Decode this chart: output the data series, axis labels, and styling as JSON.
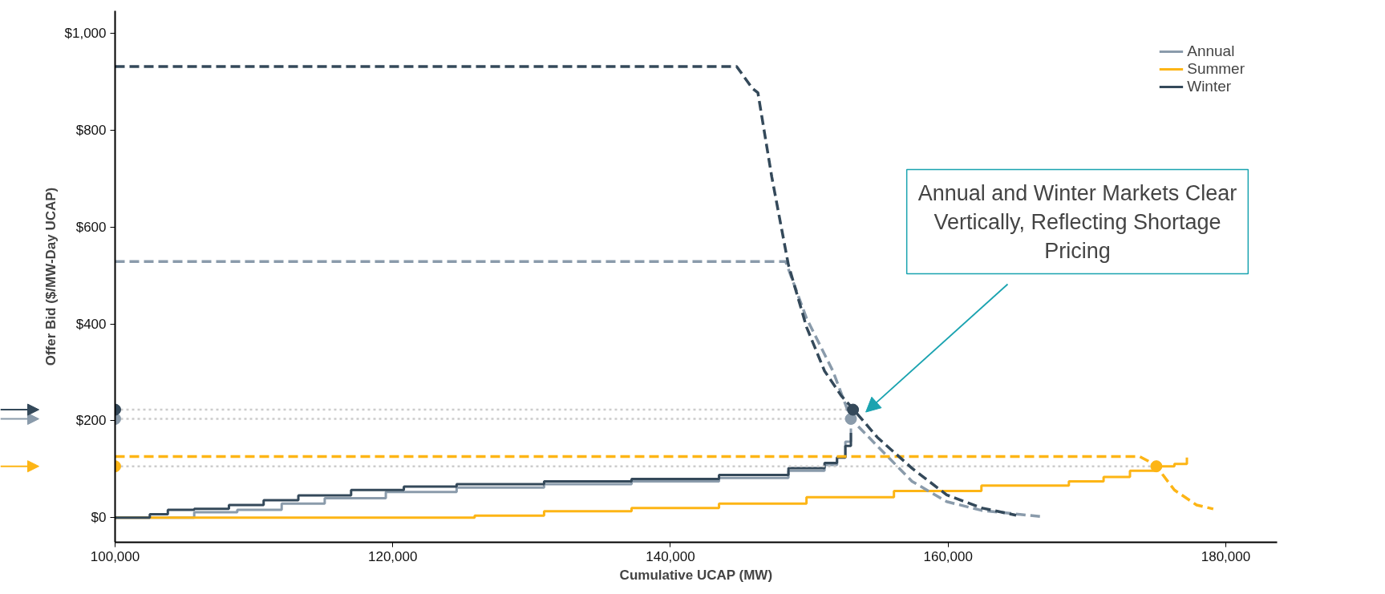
{
  "chart_data": {
    "type": "line",
    "xlabel": "Cumulative UCAP (MW)",
    "ylabel": "Offer Bid ($/MW-Day UCAP)",
    "xlim": [
      100000,
      183700
    ],
    "ylim": [
      -51,
      1047
    ],
    "xticks": [
      {
        "value": 100000,
        "label": "100,000"
      },
      {
        "value": 120000,
        "label": "120,000"
      },
      {
        "value": 140000,
        "label": "140,000"
      },
      {
        "value": 160000,
        "label": "160,000"
      },
      {
        "value": 180000,
        "label": "180,000"
      }
    ],
    "yticks": [
      {
        "value": 0,
        "label": "$0"
      },
      {
        "value": 200,
        "label": "$200"
      },
      {
        "value": 400,
        "label": "$400"
      },
      {
        "value": 600,
        "label": "$600"
      },
      {
        "value": 800,
        "label": "$800"
      },
      {
        "value": 1000,
        "label": "$1,000"
      }
    ],
    "grid": false,
    "legend": "top right",
    "series": [
      {
        "name": "Annual",
        "type": "step",
        "color": "#8a9bab",
        "x": [
          100000,
          103200,
          105700,
          108800,
          112000,
          115100,
          119500,
          124600,
          130900,
          137200,
          143500,
          148500,
          151100,
          152000,
          152600,
          153000
        ],
        "values": [
          0,
          0,
          11,
          16,
          29,
          40,
          53,
          62,
          69,
          75,
          82,
          97,
          109,
          124,
          157,
          184
        ]
      },
      {
        "name": "Summer",
        "type": "step",
        "color": "#fdb515",
        "x": [
          100000,
          123300,
          125900,
          130900,
          137200,
          143500,
          149800,
          156100,
          162400,
          168700,
          171200,
          173100,
          175000,
          176300,
          177200
        ],
        "values": [
          0,
          0,
          4,
          13,
          20,
          29,
          42,
          55,
          66,
          75,
          84,
          97,
          106,
          111,
          124
        ]
      },
      {
        "name": "Winter",
        "type": "step",
        "color": "#34495a",
        "x": [
          100000,
          101300,
          102500,
          103800,
          105700,
          108200,
          110700,
          113200,
          117000,
          120800,
          124600,
          130900,
          137200,
          143500,
          148500,
          151100,
          152000,
          152600,
          153000
        ],
        "values": [
          0,
          0,
          7,
          16,
          18,
          26,
          36,
          46,
          57,
          64,
          69,
          75,
          80,
          88,
          102,
          113,
          124,
          148,
          175
        ]
      },
      {
        "line_style": "dotted",
        "color": "#cccccc",
        "x": [
          100000,
          153000
        ],
        "values": [
          204,
          204
        ]
      },
      {
        "line_style": "dotted",
        "color": "#cccccc",
        "x": [
          100000,
          175000
        ],
        "values": [
          106,
          106
        ]
      },
      {
        "line_style": "dotted",
        "color": "#cccccc",
        "x": [
          100000,
          153150
        ],
        "values": [
          223,
          223
        ]
      },
      {
        "line_style": "dashed",
        "color": "#8a9bab",
        "x": [
          100000,
          148300,
          149800,
          151700,
          153000,
          154900,
          157400,
          159900,
          162400,
          166700
        ],
        "values": [
          529,
          529,
          412,
          303,
          204,
          148,
          75,
          33,
          15,
          2
        ]
      },
      {
        "line_style": "dashed",
        "color": "#fdb515",
        "x": [
          100000,
          173800,
          174400,
          175000,
          176300,
          177900,
          179100
        ],
        "values": [
          126,
          126,
          117,
          106,
          57,
          26,
          18
        ]
      },
      {
        "line_style": "dashed",
        "color": "#34495a",
        "x": [
          100000,
          144770,
          145900,
          146300,
          147300,
          148500,
          149800,
          151100,
          152300,
          153200,
          154900,
          157400,
          159900,
          162400,
          164900
        ],
        "values": [
          932,
          932,
          887,
          878,
          704,
          522,
          394,
          303,
          252,
          223,
          166,
          102,
          47,
          20,
          5
        ]
      },
      {
        "type": "scatter",
        "marker": "circle",
        "color": "#8a9bab",
        "x": [
          100000,
          153000
        ],
        "values": [
          204,
          204
        ]
      },
      {
        "type": "scatter",
        "marker": "circle",
        "color": "#fdb515",
        "x": [
          100000,
          175000
        ],
        "values": [
          106,
          106
        ]
      },
      {
        "type": "scatter",
        "marker": "circle",
        "color": "#34495a",
        "x": [
          100000,
          153150
        ],
        "values": [
          223,
          223
        ]
      }
    ],
    "annotations": [
      "Annual and Winter Markets Clear\nVertically, Reflecting Shortage\nPricing"
    ]
  }
}
